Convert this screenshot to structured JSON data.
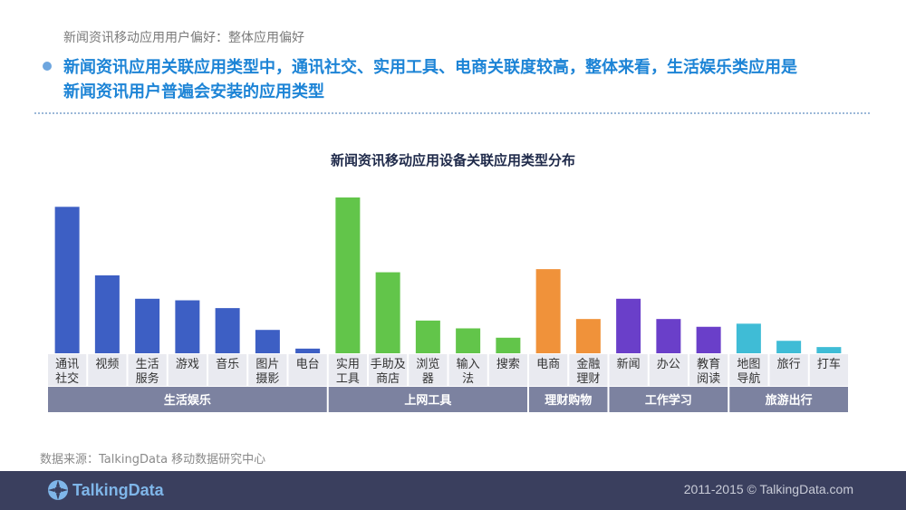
{
  "header": {
    "breadcrumb": "新闻资讯移动应用用户偏好：整体应用偏好",
    "headline_line1": "新闻资讯应用关联应用类型中，通讯社交、实用工具、电商关联度较高，整体来看，生活娱乐类应用是",
    "headline_line2": "新闻资讯用户普遍会安装的应用类型"
  },
  "chart_data": {
    "type": "bar",
    "title": "新闻资讯移动应用设备关联应用类型分布",
    "xlabel": "",
    "ylabel": "",
    "grid": false,
    "legend": "none",
    "value_scale": "relative bar height, no axis printed (0–100)",
    "groups": [
      {
        "name": "生活娱乐",
        "color": "#3d5fc4",
        "categories": [
          {
            "label": [
              "通讯",
              "社交"
            ],
            "value": 94
          },
          {
            "label": [
              "视频"
            ],
            "value": 50
          },
          {
            "label": [
              "生活",
              "服务"
            ],
            "value": 35
          },
          {
            "label": [
              "游戏"
            ],
            "value": 34
          },
          {
            "label": [
              "音乐"
            ],
            "value": 29
          },
          {
            "label": [
              "图片",
              "摄影"
            ],
            "value": 15
          },
          {
            "label": [
              "电台"
            ],
            "value": 3
          }
        ]
      },
      {
        "name": "上网工具",
        "color": "#62c54a",
        "categories": [
          {
            "label": [
              "实用",
              "工具"
            ],
            "value": 100
          },
          {
            "label": [
              "手助及",
              "商店"
            ],
            "value": 52
          },
          {
            "label": [
              "浏览",
              "器"
            ],
            "value": 21
          },
          {
            "label": [
              "输入",
              "法"
            ],
            "value": 16
          },
          {
            "label": [
              "搜索"
            ],
            "value": 10
          }
        ]
      },
      {
        "name": "理财购物",
        "color": "#f0923a",
        "categories": [
          {
            "label": [
              "电商"
            ],
            "value": 54
          },
          {
            "label": [
              "金融",
              "理财"
            ],
            "value": 22
          }
        ]
      },
      {
        "name": "工作学习",
        "color": "#6a3fc9",
        "categories": [
          {
            "label": [
              "新闻"
            ],
            "value": 35
          },
          {
            "label": [
              "办公"
            ],
            "value": 22
          },
          {
            "label": [
              "教育",
              "阅读"
            ],
            "value": 17
          }
        ]
      },
      {
        "name": "旅游出行",
        "color": "#3fbcd6",
        "categories": [
          {
            "label": [
              "地图",
              "导航"
            ],
            "value": 19
          },
          {
            "label": [
              "旅行"
            ],
            "value": 8
          },
          {
            "label": [
              "打车"
            ],
            "value": 4
          }
        ]
      }
    ]
  },
  "footer": {
    "source": "数据来源：TalkingData 移动数据研究中心",
    "brand": "TalkingData",
    "copyright": "2011-2015 © TalkingData.com"
  },
  "colors": {
    "headline": "#1d84d6",
    "footer_bg": "#3a3f5e",
    "group_band": "#7c82a0",
    "label_cell": "#e9eaf0"
  },
  "icons": {
    "bullet": "bullet-dot-icon",
    "logo": "talkingdata-logo-icon"
  }
}
